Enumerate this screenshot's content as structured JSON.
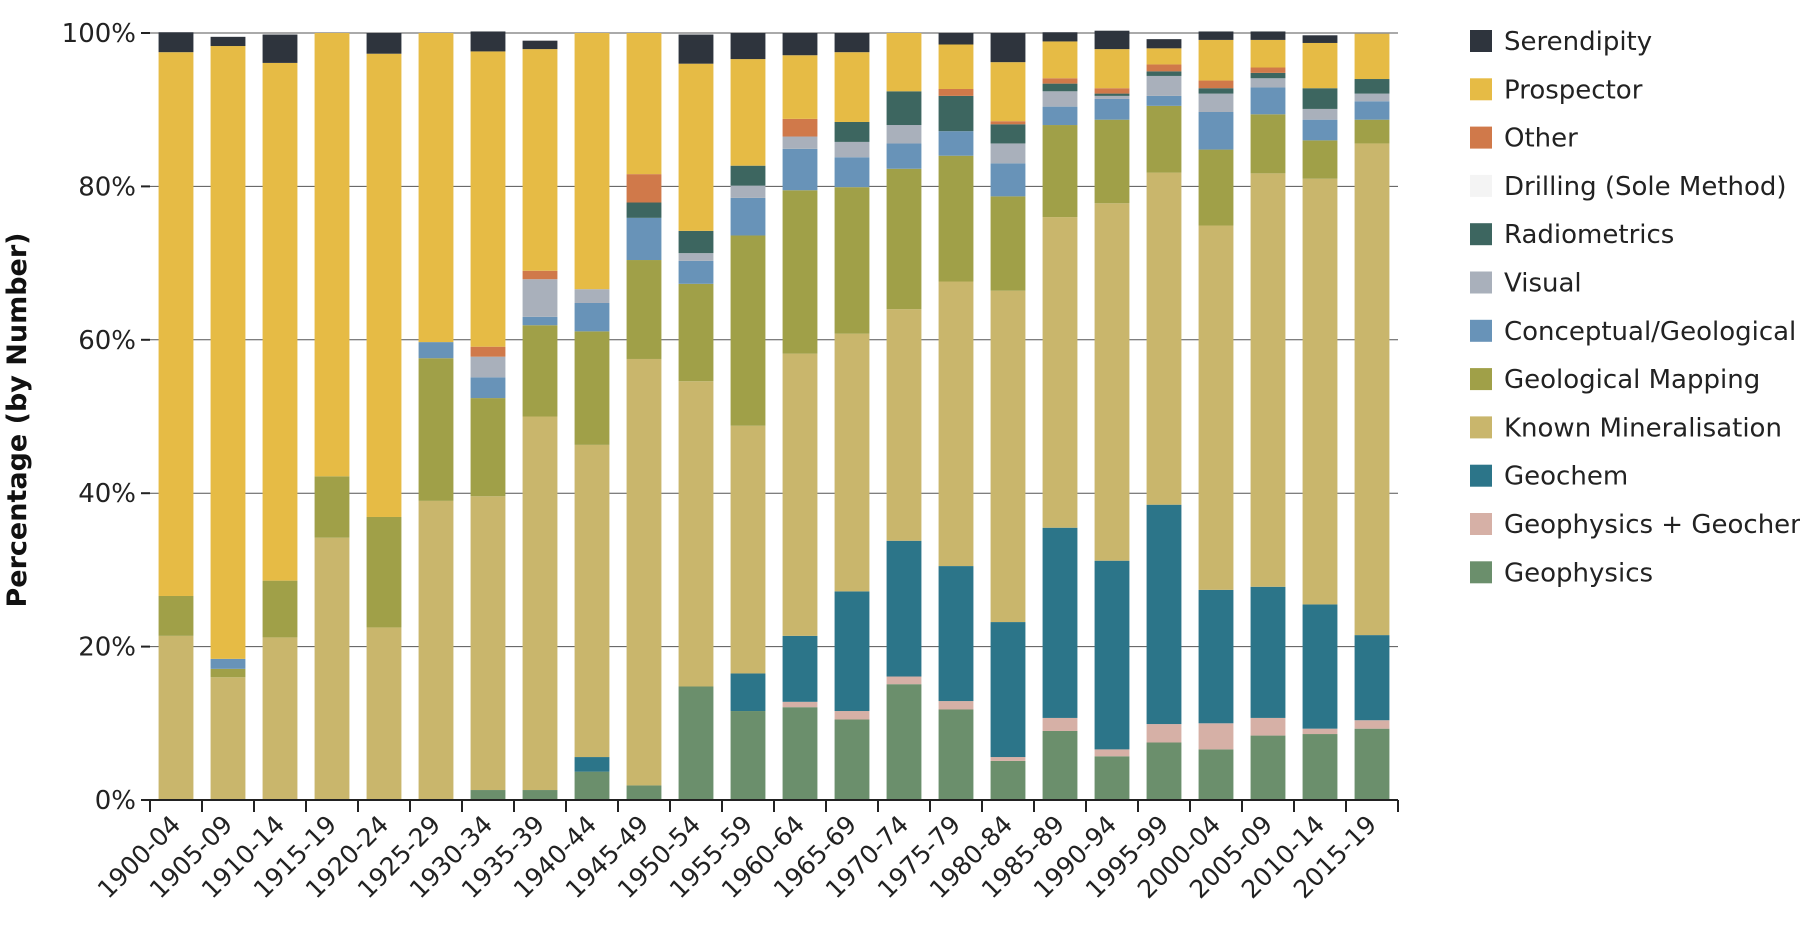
{
  "chart_data": {
    "type": "bar",
    "stacked": true,
    "title": "",
    "xlabel": "",
    "ylabel": "Percentage (by Number)",
    "ylim": [
      0,
      100
    ],
    "yticks": [
      "0%",
      "20%",
      "40%",
      "60%",
      "80%",
      "100%"
    ],
    "grid": true,
    "legend_position": "right",
    "categories": [
      "1900-04",
      "1905-09",
      "1910-14",
      "1915-19",
      "1920-24",
      "1925-29",
      "1930-34",
      "1935-39",
      "1940-44",
      "1945-49",
      "1950-54",
      "1955-59",
      "1960-64",
      "1965-69",
      "1970-74",
      "1975-79",
      "1980-84",
      "1985-89",
      "1990-94",
      "1995-99",
      "2000-04",
      "2005-09",
      "2010-14",
      "2015-19"
    ],
    "series": [
      {
        "name": "Geophysics",
        "color": "#6b8f6c",
        "values": [
          0,
          0,
          0,
          0,
          0,
          0,
          1.3,
          1.3,
          3.7,
          1.9,
          14.8,
          11.6,
          12.1,
          10.5,
          15.1,
          11.8,
          5.1,
          9.0,
          5.7,
          7.5,
          6.6,
          8.4,
          8.6,
          9.3
        ]
      },
      {
        "name": "Geophysics + Geochem",
        "color": "#d6b0a6",
        "values": [
          0,
          0,
          0,
          0,
          0,
          0,
          0,
          0,
          0,
          0,
          0,
          0,
          0.7,
          1.1,
          1.0,
          1.1,
          0.5,
          1.7,
          0.9,
          2.4,
          3.4,
          2.3,
          0.7,
          1.1
        ]
      },
      {
        "name": "Geochem",
        "color": "#2c7589",
        "values": [
          0,
          0,
          0,
          0,
          0,
          0,
          0,
          0,
          1.9,
          0,
          0,
          4.9,
          8.6,
          15.6,
          17.7,
          17.6,
          17.6,
          24.8,
          24.6,
          28.6,
          17.4,
          17.1,
          16.2,
          11.1
        ]
      },
      {
        "name": "Known Mineralisation",
        "color": "#c9b66c",
        "values": [
          21.4,
          16.0,
          21.2,
          34.2,
          22.5,
          39.0,
          38.3,
          48.7,
          40.7,
          55.6,
          39.8,
          32.3,
          36.8,
          33.6,
          30.2,
          37.1,
          43.2,
          40.5,
          46.6,
          43.3,
          47.5,
          53.9,
          55.5,
          64.1
        ]
      },
      {
        "name": "Geological Mapping",
        "color": "#a0a048",
        "values": [
          5.2,
          1.1,
          7.4,
          8.0,
          14.4,
          18.6,
          12.8,
          11.9,
          14.8,
          12.9,
          12.7,
          24.8,
          21.3,
          19.1,
          18.3,
          16.4,
          12.3,
          12.0,
          10.9,
          8.7,
          9.9,
          7.7,
          5.0,
          3.1
        ]
      },
      {
        "name": "Conceptual/Geological",
        "color": "#6893b8",
        "values": [
          0,
          1.3,
          0,
          0,
          0,
          2.1,
          2.7,
          1.1,
          3.7,
          5.5,
          3.0,
          4.9,
          5.4,
          3.9,
          3.3,
          3.2,
          4.3,
          2.4,
          2.7,
          1.3,
          4.9,
          3.5,
          2.7,
          2.4
        ]
      },
      {
        "name": "Visual",
        "color": "#a9b0bb",
        "values": [
          0,
          0,
          0,
          0,
          0,
          0,
          2.7,
          4.9,
          1.8,
          0,
          1.0,
          1.6,
          1.6,
          2.0,
          2.4,
          0,
          2.6,
          2.0,
          0.4,
          2.6,
          2.4,
          1.2,
          1.4,
          1.0
        ]
      },
      {
        "name": "Radiometrics",
        "color": "#3d6660",
        "values": [
          0,
          0,
          0,
          0,
          0,
          0,
          0,
          0,
          0,
          2.0,
          2.9,
          2.6,
          0,
          2.6,
          4.4,
          4.6,
          2.5,
          1.0,
          0.3,
          0.6,
          0.7,
          0.7,
          2.7,
          1.9
        ]
      },
      {
        "name": "Drilling (Sole Method)",
        "color": "#f4f4f4",
        "values": [
          0,
          0,
          0,
          0,
          0,
          0,
          0,
          0,
          0,
          0,
          0,
          0,
          0,
          0,
          0,
          0,
          0,
          0,
          0,
          0,
          0,
          0,
          0,
          0
        ]
      },
      {
        "name": "Other",
        "color": "#d0794a",
        "values": [
          0,
          0,
          0,
          0,
          0,
          0,
          1.3,
          1.1,
          0,
          3.7,
          0,
          0,
          2.3,
          0,
          0,
          0.9,
          0.4,
          0.7,
          0.7,
          0.9,
          1.0,
          0.7,
          0,
          0
        ]
      },
      {
        "name": "Prospector",
        "color": "#e6bb45",
        "values": [
          70.9,
          79.9,
          67.5,
          57.8,
          60.4,
          40.3,
          38.5,
          28.9,
          33.4,
          18.4,
          21.8,
          13.9,
          8.3,
          9.1,
          7.6,
          5.8,
          7.7,
          4.8,
          5.1,
          2.1,
          5.3,
          3.6,
          5.9,
          5.9
        ]
      },
      {
        "name": "Serendipity",
        "color": "#2e343d",
        "values": [
          2.6,
          1.2,
          3.7,
          0,
          2.7,
          0,
          2.6,
          1.1,
          0,
          0,
          3.8,
          3.4,
          2.9,
          2.5,
          0,
          1.5,
          3.8,
          1.2,
          2.4,
          1.2,
          1.1,
          1.1,
          1.0,
          0
        ]
      }
    ]
  }
}
